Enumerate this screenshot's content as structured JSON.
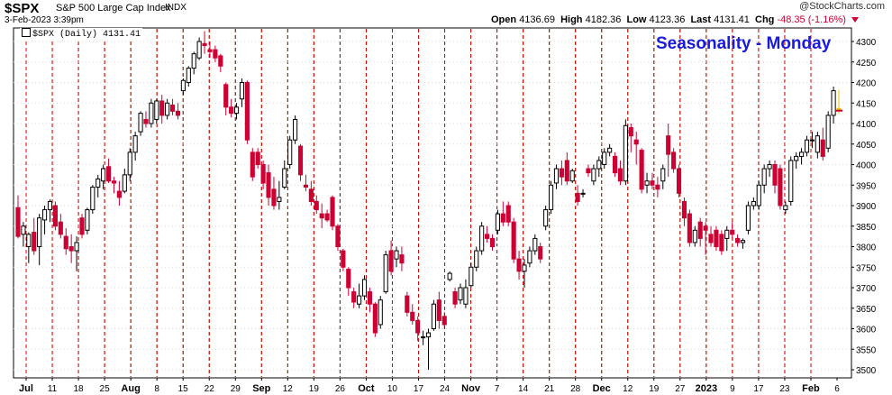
{
  "header": {
    "symbol": "$SPX",
    "name": "S&P 500 Large Cap Index",
    "exchange": "INDX",
    "date": "3-Feb-2023 3:39pm",
    "copyright": "@StockCharts.com",
    "open_label": "Open",
    "open": "4136.69",
    "high_label": "High",
    "high": "4182.36",
    "low_label": "Low",
    "low": "4123.36",
    "last_label": "Last",
    "last": "4131.41",
    "chg_label": "Chg",
    "chg": "-48.35 (-1.16%)"
  },
  "legend": "$SPX (Daily) 4131.41",
  "colors": {
    "up": "#000000",
    "down": "#cc0033",
    "friday_line": "#e00000",
    "monday_line": "#008800",
    "title": "#1a1adc",
    "highlight": "#f2c200"
  },
  "chart_data": {
    "type": "candlestick",
    "title": "Seasonality - Monday",
    "y_range": [
      3480,
      4330
    ],
    "y_ticks": [
      3500,
      3550,
      3600,
      3650,
      3700,
      3750,
      3800,
      3850,
      3900,
      3950,
      4000,
      4050,
      4100,
      4150,
      4200,
      4250,
      4300
    ],
    "x_labels": [
      "Jul",
      "11",
      "18",
      "25",
      "Aug",
      "8",
      "15",
      "22",
      "29",
      "Sep",
      "12",
      "19",
      "26",
      "Oct",
      "10",
      "17",
      "24",
      "Nov",
      "7",
      "14",
      "21",
      "28",
      "Dec",
      "12",
      "19",
      "27",
      "2023",
      "9",
      "17",
      "23",
      "Feb",
      "6"
    ],
    "vertical_lines": "dashed red before each Monday (on Fridays), dashed green on Mondays",
    "series": [
      {
        "o": 3895,
        "h": 3925,
        "l": 3820,
        "c": 3825
      },
      {
        "o": 3830,
        "h": 3860,
        "l": 3800,
        "c": 3850
      },
      {
        "o": 3800,
        "h": 3835,
        "l": 3760,
        "c": 3830
      },
      {
        "o": 3835,
        "h": 3870,
        "l": 3780,
        "c": 3790
      },
      {
        "o": 3800,
        "h": 3880,
        "l": 3755,
        "c": 3870
      },
      {
        "o": 3865,
        "h": 3900,
        "l": 3830,
        "c": 3890
      },
      {
        "o": 3890,
        "h": 3915,
        "l": 3860,
        "c": 3910
      },
      {
        "o": 3900,
        "h": 3910,
        "l": 3840,
        "c": 3850
      },
      {
        "o": 3860,
        "h": 3880,
        "l": 3820,
        "c": 3830
      },
      {
        "o": 3825,
        "h": 3845,
        "l": 3780,
        "c": 3795
      },
      {
        "o": 3800,
        "h": 3830,
        "l": 3760,
        "c": 3790
      },
      {
        "o": 3790,
        "h": 3825,
        "l": 3740,
        "c": 3810
      },
      {
        "o": 3870,
        "h": 3880,
        "l": 3820,
        "c": 3830
      },
      {
        "o": 3840,
        "h": 3895,
        "l": 3830,
        "c": 3890
      },
      {
        "o": 3890,
        "h": 3950,
        "l": 3880,
        "c": 3945
      },
      {
        "o": 3945,
        "h": 3975,
        "l": 3920,
        "c": 3965
      },
      {
        "o": 3960,
        "h": 4000,
        "l": 3940,
        "c": 3990
      },
      {
        "o": 3995,
        "h": 4015,
        "l": 3955,
        "c": 3960
      },
      {
        "o": 3960,
        "h": 3970,
        "l": 3930,
        "c": 3955
      },
      {
        "o": 3935,
        "h": 3960,
        "l": 3900,
        "c": 3920
      },
      {
        "o": 3935,
        "h": 3990,
        "l": 3930,
        "c": 3975
      },
      {
        "o": 3975,
        "h": 4040,
        "l": 3960,
        "c": 4030
      },
      {
        "o": 4030,
        "h": 4080,
        "l": 4010,
        "c": 4070
      },
      {
        "o": 4080,
        "h": 4130,
        "l": 4070,
        "c": 4125
      },
      {
        "o": 4110,
        "h": 4130,
        "l": 4090,
        "c": 4100
      },
      {
        "o": 4100,
        "h": 4160,
        "l": 4090,
        "c": 4150
      },
      {
        "o": 4110,
        "h": 4160,
        "l": 4100,
        "c": 4155
      },
      {
        "o": 4155,
        "h": 4170,
        "l": 4100,
        "c": 4120
      },
      {
        "o": 4120,
        "h": 4160,
        "l": 4110,
        "c": 4150
      },
      {
        "o": 4145,
        "h": 4160,
        "l": 4120,
        "c": 4130
      },
      {
        "o": 4130,
        "h": 4150,
        "l": 4110,
        "c": 4120
      },
      {
        "o": 4180,
        "h": 4210,
        "l": 4170,
        "c": 4205
      },
      {
        "o": 4200,
        "h": 4240,
        "l": 4190,
        "c": 4235
      },
      {
        "o": 4235,
        "h": 4275,
        "l": 4220,
        "c": 4270
      },
      {
        "o": 4260,
        "h": 4310,
        "l": 4255,
        "c": 4300
      },
      {
        "o": 4295,
        "h": 4325,
        "l": 4270,
        "c": 4290
      },
      {
        "o": 4280,
        "h": 4300,
        "l": 4260,
        "c": 4275
      },
      {
        "o": 4280,
        "h": 4290,
        "l": 4250,
        "c": 4260
      },
      {
        "o": 4265,
        "h": 4270,
        "l": 4225,
        "c": 4240
      },
      {
        "o": 4195,
        "h": 4200,
        "l": 4120,
        "c": 4140
      },
      {
        "o": 4140,
        "h": 4160,
        "l": 4115,
        "c": 4125
      },
      {
        "o": 4125,
        "h": 4150,
        "l": 4110,
        "c": 4140
      },
      {
        "o": 4160,
        "h": 4210,
        "l": 4140,
        "c": 4200
      },
      {
        "o": 4200,
        "h": 4205,
        "l": 4050,
        "c": 4060
      },
      {
        "o": 4030,
        "h": 4040,
        "l": 3960,
        "c": 3970
      },
      {
        "o": 4030,
        "h": 4040,
        "l": 3990,
        "c": 4000
      },
      {
        "o": 4000,
        "h": 4010,
        "l": 3940,
        "c": 3955
      },
      {
        "o": 3980,
        "h": 4000,
        "l": 3900,
        "c": 3920
      },
      {
        "o": 3940,
        "h": 3970,
        "l": 3890,
        "c": 3900
      },
      {
        "o": 3910,
        "h": 3960,
        "l": 3890,
        "c": 3920
      },
      {
        "o": 3945,
        "h": 4010,
        "l": 3940,
        "c": 3990
      },
      {
        "o": 4000,
        "h": 4070,
        "l": 3990,
        "c": 4060
      },
      {
        "o": 4060,
        "h": 4120,
        "l": 4050,
        "c": 4110
      },
      {
        "o": 4045,
        "h": 4050,
        "l": 3960,
        "c": 3975
      },
      {
        "o": 3950,
        "h": 3975,
        "l": 3935,
        "c": 3945
      },
      {
        "o": 3940,
        "h": 3960,
        "l": 3900,
        "c": 3910
      },
      {
        "o": 3910,
        "h": 3925,
        "l": 3880,
        "c": 3890
      },
      {
        "o": 3880,
        "h": 3905,
        "l": 3845,
        "c": 3870
      },
      {
        "o": 3880,
        "h": 3890,
        "l": 3860,
        "c": 3865
      },
      {
        "o": 3920,
        "h": 3925,
        "l": 3840,
        "c": 3850
      },
      {
        "o": 3850,
        "h": 3855,
        "l": 3790,
        "c": 3800
      },
      {
        "o": 3790,
        "h": 3795,
        "l": 3740,
        "c": 3750
      },
      {
        "o": 3745,
        "h": 3750,
        "l": 3680,
        "c": 3700
      },
      {
        "o": 3690,
        "h": 3700,
        "l": 3650,
        "c": 3665
      },
      {
        "o": 3660,
        "h": 3710,
        "l": 3650,
        "c": 3680
      },
      {
        "o": 3680,
        "h": 3730,
        "l": 3670,
        "c": 3720
      },
      {
        "o": 3690,
        "h": 3700,
        "l": 3640,
        "c": 3660
      },
      {
        "o": 3660,
        "h": 3665,
        "l": 3580,
        "c": 3590
      },
      {
        "o": 3610,
        "h": 3680,
        "l": 3600,
        "c": 3670
      },
      {
        "o": 3690,
        "h": 3790,
        "l": 3685,
        "c": 3780
      },
      {
        "o": 3790,
        "h": 3815,
        "l": 3730,
        "c": 3740
      },
      {
        "o": 3770,
        "h": 3800,
        "l": 3750,
        "c": 3790
      },
      {
        "o": 3780,
        "h": 3800,
        "l": 3740,
        "c": 3760
      },
      {
        "o": 3680,
        "h": 3690,
        "l": 3630,
        "c": 3640
      },
      {
        "o": 3640,
        "h": 3660,
        "l": 3610,
        "c": 3620
      },
      {
        "o": 3620,
        "h": 3630,
        "l": 3570,
        "c": 3590
      },
      {
        "o": 3580,
        "h": 3595,
        "l": 3560,
        "c": 3580
      },
      {
        "o": 3580,
        "h": 3600,
        "l": 3500,
        "c": 3590
      },
      {
        "o": 3600,
        "h": 3670,
        "l": 3595,
        "c": 3660
      },
      {
        "o": 3670,
        "h": 3690,
        "l": 3600,
        "c": 3620
      },
      {
        "o": 3630,
        "h": 3640,
        "l": 3600,
        "c": 3610
      },
      {
        "o": 3720,
        "h": 3740,
        "l": 3715,
        "c": 3735
      },
      {
        "o": 3690,
        "h": 3700,
        "l": 3650,
        "c": 3660
      },
      {
        "o": 3670,
        "h": 3710,
        "l": 3660,
        "c": 3700
      },
      {
        "o": 3660,
        "h": 3720,
        "l": 3650,
        "c": 3700
      },
      {
        "o": 3705,
        "h": 3760,
        "l": 3700,
        "c": 3750
      },
      {
        "o": 3750,
        "h": 3800,
        "l": 3740,
        "c": 3790
      },
      {
        "o": 3790,
        "h": 3860,
        "l": 3780,
        "c": 3850
      },
      {
        "o": 3830,
        "h": 3850,
        "l": 3810,
        "c": 3820
      },
      {
        "o": 3820,
        "h": 3830,
        "l": 3790,
        "c": 3800
      },
      {
        "o": 3840,
        "h": 3890,
        "l": 3830,
        "c": 3880
      },
      {
        "o": 3880,
        "h": 3910,
        "l": 3850,
        "c": 3860
      },
      {
        "o": 3900,
        "h": 3910,
        "l": 3850,
        "c": 3860
      },
      {
        "o": 3860,
        "h": 3870,
        "l": 3760,
        "c": 3770
      },
      {
        "o": 3770,
        "h": 3790,
        "l": 3720,
        "c": 3740
      },
      {
        "o": 3740,
        "h": 3770,
        "l": 3700,
        "c": 3755
      },
      {
        "o": 3760,
        "h": 3800,
        "l": 3750,
        "c": 3790
      },
      {
        "o": 3790,
        "h": 3830,
        "l": 3780,
        "c": 3820
      },
      {
        "o": 3800,
        "h": 3810,
        "l": 3760,
        "c": 3770
      },
      {
        "o": 3850,
        "h": 3900,
        "l": 3840,
        "c": 3890
      },
      {
        "o": 3890,
        "h": 3960,
        "l": 3880,
        "c": 3950
      },
      {
        "o": 3955,
        "h": 4000,
        "l": 3940,
        "c": 3990
      },
      {
        "o": 3990,
        "h": 4010,
        "l": 3950,
        "c": 3970
      },
      {
        "o": 4010,
        "h": 4030,
        "l": 3950,
        "c": 3960
      },
      {
        "o": 3960,
        "h": 3990,
        "l": 3955,
        "c": 3985
      },
      {
        "o": 3930,
        "h": 3950,
        "l": 3900,
        "c": 3910
      },
      {
        "o": 3930,
        "h": 3940,
        "l": 3920,
        "c": 3930
      },
      {
        "o": 3990,
        "h": 4000,
        "l": 3970,
        "c": 3980
      },
      {
        "o": 3960,
        "h": 4000,
        "l": 3950,
        "c": 3990
      },
      {
        "o": 3990,
        "h": 4020,
        "l": 3970,
        "c": 4010
      },
      {
        "o": 4000,
        "h": 4040,
        "l": 3990,
        "c": 4030
      },
      {
        "o": 4030,
        "h": 4050,
        "l": 4020,
        "c": 4040
      },
      {
        "o": 4020,
        "h": 4030,
        "l": 3970,
        "c": 3980
      },
      {
        "o": 3990,
        "h": 4010,
        "l": 3950,
        "c": 3960
      },
      {
        "o": 3960,
        "h": 4110,
        "l": 3950,
        "c": 4095
      },
      {
        "o": 4090,
        "h": 4100,
        "l": 4030,
        "c": 4070
      },
      {
        "o": 4060,
        "h": 4080,
        "l": 4000,
        "c": 4050
      },
      {
        "o": 4035,
        "h": 4040,
        "l": 3930,
        "c": 3940
      },
      {
        "o": 3950,
        "h": 3980,
        "l": 3930,
        "c": 3960
      },
      {
        "o": 3960,
        "h": 3980,
        "l": 3940,
        "c": 3950
      },
      {
        "o": 3950,
        "h": 3970,
        "l": 3920,
        "c": 3940
      },
      {
        "o": 3960,
        "h": 4000,
        "l": 3940,
        "c": 3990
      },
      {
        "o": 4070,
        "h": 4100,
        "l": 3970,
        "c": 4025
      },
      {
        "o": 4030,
        "h": 4040,
        "l": 3980,
        "c": 3990
      },
      {
        "o": 3990,
        "h": 4000,
        "l": 3920,
        "c": 3930
      },
      {
        "o": 3910,
        "h": 3920,
        "l": 3850,
        "c": 3870
      },
      {
        "o": 3880,
        "h": 3890,
        "l": 3800,
        "c": 3810
      },
      {
        "o": 3810,
        "h": 3850,
        "l": 3800,
        "c": 3840
      },
      {
        "o": 3860,
        "h": 3870,
        "l": 3800,
        "c": 3820
      },
      {
        "o": 3850,
        "h": 3860,
        "l": 3780,
        "c": 3840
      },
      {
        "o": 3830,
        "h": 3850,
        "l": 3800,
        "c": 3810
      },
      {
        "o": 3840,
        "h": 3850,
        "l": 3790,
        "c": 3800
      },
      {
        "o": 3830,
        "h": 3840,
        "l": 3780,
        "c": 3790
      },
      {
        "o": 3820,
        "h": 3850,
        "l": 3790,
        "c": 3840
      },
      {
        "o": 3840,
        "h": 3860,
        "l": 3820,
        "c": 3830
      },
      {
        "o": 3820,
        "h": 3830,
        "l": 3800,
        "c": 3810
      },
      {
        "o": 3810,
        "h": 3820,
        "l": 3795,
        "c": 3815
      },
      {
        "o": 3840,
        "h": 3910,
        "l": 3830,
        "c": 3900
      },
      {
        "o": 3900,
        "h": 3920,
        "l": 3890,
        "c": 3910
      },
      {
        "o": 3900,
        "h": 3960,
        "l": 3890,
        "c": 3950
      },
      {
        "o": 3950,
        "h": 4000,
        "l": 3930,
        "c": 3990
      },
      {
        "o": 3990,
        "h": 4010,
        "l": 3970,
        "c": 4000
      },
      {
        "o": 4000,
        "h": 4010,
        "l": 3930,
        "c": 3950
      },
      {
        "o": 3990,
        "h": 4000,
        "l": 3890,
        "c": 3900
      },
      {
        "o": 3890,
        "h": 3910,
        "l": 3880,
        "c": 3900
      },
      {
        "o": 3910,
        "h": 4020,
        "l": 3900,
        "c": 4010
      },
      {
        "o": 4010,
        "h": 4030,
        "l": 3990,
        "c": 4020
      },
      {
        "o": 4020,
        "h": 4040,
        "l": 4000,
        "c": 4030
      },
      {
        "o": 4030,
        "h": 4070,
        "l": 4020,
        "c": 4060
      },
      {
        "o": 4060,
        "h": 4080,
        "l": 4040,
        "c": 4060
      },
      {
        "o": 4030,
        "h": 4080,
        "l": 4015,
        "c": 4070
      },
      {
        "o": 4060,
        "h": 4090,
        "l": 4010,
        "c": 4020
      },
      {
        "o": 4040,
        "h": 4130,
        "l": 4030,
        "c": 4120
      },
      {
        "o": 4120,
        "h": 4190,
        "l": 4100,
        "c": 4180
      },
      {
        "o": 4136.69,
        "h": 4182.36,
        "l": 4123.36,
        "c": 4131.41
      }
    ]
  }
}
